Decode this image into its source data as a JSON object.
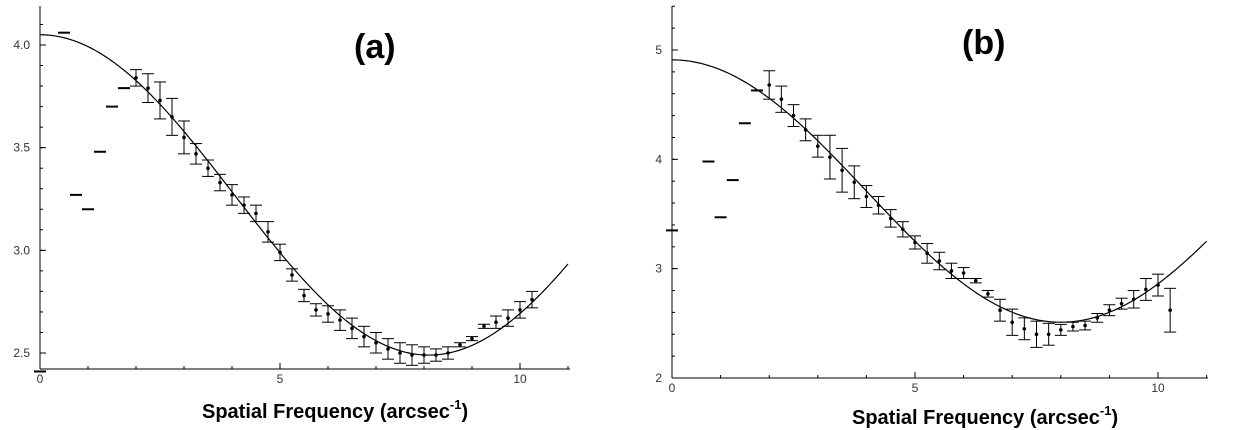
{
  "chart_data": [
    {
      "type": "scatter",
      "panel_label": "(a)",
      "xlabel": "Spatial Frequency (arcsec",
      "xlabel_sup": "-1",
      "xlabel_close": ")",
      "xlim": [
        0,
        11
      ],
      "ylim": [
        2.4,
        4.2
      ],
      "x_ticks": [
        0,
        5,
        10
      ],
      "y_ticks": [
        2.5,
        3.0,
        3.5,
        4.0
      ],
      "y_tick_labels": [
        "2.5",
        "3.0",
        "3.5",
        "4.0"
      ],
      "grid": false,
      "model_curve": {
        "a": 3.27,
        "b": 0.78,
        "period": 16.2
      },
      "low_points": [
        {
          "x": 0.5,
          "y": 4.06
        },
        {
          "x": 0.75,
          "y": 3.27
        },
        {
          "x": 1.0,
          "y": 3.2
        },
        {
          "x": 1.25,
          "y": 3.48
        },
        {
          "x": 1.5,
          "y": 3.7
        },
        {
          "x": 1.75,
          "y": 3.79
        },
        {
          "x": 0.0,
          "y": 2.41
        }
      ],
      "points": [
        {
          "x": 2.0,
          "y": 3.84,
          "err": 0.04
        },
        {
          "x": 2.25,
          "y": 3.79,
          "err": 0.07
        },
        {
          "x": 2.5,
          "y": 3.73,
          "err": 0.09
        },
        {
          "x": 2.75,
          "y": 3.65,
          "err": 0.09
        },
        {
          "x": 3.0,
          "y": 3.55,
          "err": 0.08
        },
        {
          "x": 3.25,
          "y": 3.47,
          "err": 0.05
        },
        {
          "x": 3.5,
          "y": 3.4,
          "err": 0.04
        },
        {
          "x": 3.75,
          "y": 3.33,
          "err": 0.04
        },
        {
          "x": 4.0,
          "y": 3.27,
          "err": 0.05
        },
        {
          "x": 4.25,
          "y": 3.22,
          "err": 0.04
        },
        {
          "x": 4.5,
          "y": 3.18,
          "err": 0.04
        },
        {
          "x": 4.75,
          "y": 3.09,
          "err": 0.05
        },
        {
          "x": 5.0,
          "y": 2.99,
          "err": 0.04
        },
        {
          "x": 5.25,
          "y": 2.88,
          "err": 0.03
        },
        {
          "x": 5.5,
          "y": 2.78,
          "err": 0.03
        },
        {
          "x": 5.75,
          "y": 2.71,
          "err": 0.03
        },
        {
          "x": 6.0,
          "y": 2.69,
          "err": 0.04
        },
        {
          "x": 6.25,
          "y": 2.66,
          "err": 0.05
        },
        {
          "x": 6.5,
          "y": 2.62,
          "err": 0.05
        },
        {
          "x": 6.75,
          "y": 2.58,
          "err": 0.05
        },
        {
          "x": 7.0,
          "y": 2.55,
          "err": 0.05
        },
        {
          "x": 7.25,
          "y": 2.52,
          "err": 0.05
        },
        {
          "x": 7.5,
          "y": 2.5,
          "err": 0.05
        },
        {
          "x": 7.75,
          "y": 2.49,
          "err": 0.05
        },
        {
          "x": 8.0,
          "y": 2.49,
          "err": 0.04
        },
        {
          "x": 8.25,
          "y": 2.49,
          "err": 0.03
        },
        {
          "x": 8.5,
          "y": 2.5,
          "err": 0.03
        },
        {
          "x": 8.75,
          "y": 2.54,
          "err": 0.01
        },
        {
          "x": 9.0,
          "y": 2.57,
          "err": 0.01
        },
        {
          "x": 9.25,
          "y": 2.63,
          "err": 0.01
        },
        {
          "x": 9.5,
          "y": 2.65,
          "err": 0.03
        },
        {
          "x": 9.75,
          "y": 2.67,
          "err": 0.04
        },
        {
          "x": 10.0,
          "y": 2.71,
          "err": 0.04
        },
        {
          "x": 10.25,
          "y": 2.76,
          "err": 0.04
        }
      ]
    },
    {
      "type": "scatter",
      "panel_label": "(b)",
      "xlabel": "Spatial Frequency (arcsec",
      "xlabel_sup": "-1",
      "xlabel_close": ")",
      "xlim": [
        0,
        11
      ],
      "ylim": [
        2,
        5.4
      ],
      "x_ticks": [
        0,
        5,
        10
      ],
      "y_ticks": [
        2,
        3,
        4,
        5
      ],
      "y_tick_labels": [
        "2",
        "3",
        "4",
        "5"
      ],
      "grid": false,
      "model_curve": {
        "a": 3.71,
        "b": 1.2,
        "period": 16.0
      },
      "low_points": [
        {
          "x": 0.75,
          "y": 3.98
        },
        {
          "x": 1.0,
          "y": 3.47
        },
        {
          "x": 1.25,
          "y": 3.81
        },
        {
          "x": 1.5,
          "y": 4.33
        },
        {
          "x": 1.75,
          "y": 4.63
        },
        {
          "x": 0.0,
          "y": 3.35
        }
      ],
      "points": [
        {
          "x": 2.0,
          "y": 4.68,
          "err": 0.13
        },
        {
          "x": 2.25,
          "y": 4.55,
          "err": 0.12
        },
        {
          "x": 2.5,
          "y": 4.4,
          "err": 0.1
        },
        {
          "x": 2.75,
          "y": 4.27,
          "err": 0.1
        },
        {
          "x": 3.0,
          "y": 4.12,
          "err": 0.1
        },
        {
          "x": 3.25,
          "y": 4.02,
          "err": 0.2
        },
        {
          "x": 3.5,
          "y": 3.9,
          "err": 0.2
        },
        {
          "x": 3.75,
          "y": 3.79,
          "err": 0.15
        },
        {
          "x": 4.0,
          "y": 3.66,
          "err": 0.1
        },
        {
          "x": 4.25,
          "y": 3.58,
          "err": 0.08
        },
        {
          "x": 4.5,
          "y": 3.46,
          "err": 0.08
        },
        {
          "x": 4.75,
          "y": 3.36,
          "err": 0.07
        },
        {
          "x": 5.0,
          "y": 3.24,
          "err": 0.06
        },
        {
          "x": 5.25,
          "y": 3.14,
          "err": 0.09
        },
        {
          "x": 5.5,
          "y": 3.07,
          "err": 0.08
        },
        {
          "x": 5.75,
          "y": 2.98,
          "err": 0.07
        },
        {
          "x": 6.0,
          "y": 2.96,
          "err": 0.05
        },
        {
          "x": 6.25,
          "y": 2.89,
          "err": 0.02
        },
        {
          "x": 6.5,
          "y": 2.77,
          "err": 0.03
        },
        {
          "x": 6.75,
          "y": 2.62,
          "err": 0.1
        },
        {
          "x": 7.0,
          "y": 2.51,
          "err": 0.12
        },
        {
          "x": 7.25,
          "y": 2.45,
          "err": 0.1
        },
        {
          "x": 7.5,
          "y": 2.4,
          "err": 0.12
        },
        {
          "x": 7.75,
          "y": 2.4,
          "err": 0.1
        },
        {
          "x": 8.0,
          "y": 2.44,
          "err": 0.05
        },
        {
          "x": 8.25,
          "y": 2.47,
          "err": 0.04
        },
        {
          "x": 8.5,
          "y": 2.48,
          "err": 0.04
        },
        {
          "x": 8.75,
          "y": 2.55,
          "err": 0.04
        },
        {
          "x": 9.0,
          "y": 2.62,
          "err": 0.05
        },
        {
          "x": 9.25,
          "y": 2.68,
          "err": 0.05
        },
        {
          "x": 9.5,
          "y": 2.72,
          "err": 0.08
        },
        {
          "x": 9.75,
          "y": 2.81,
          "err": 0.1
        },
        {
          "x": 10.0,
          "y": 2.85,
          "err": 0.1
        },
        {
          "x": 10.25,
          "y": 2.62,
          "err": 0.2
        }
      ]
    }
  ]
}
